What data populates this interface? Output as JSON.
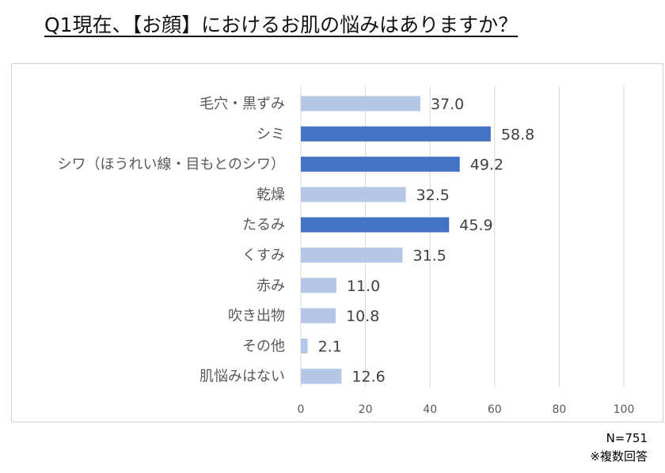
{
  "chart_data": {
    "type": "bar",
    "orientation": "horizontal",
    "title": "Q1現在、【お顔】におけるお肌の悩みはありますか？",
    "categories": [
      "毛穴・黒ずみ",
      "シミ",
      "シワ（ほうれい線・目もとのシワ）",
      "乾燥",
      "たるみ",
      "くすみ",
      "赤み",
      "吹き出物",
      "その他",
      "肌悩みはない"
    ],
    "values": [
      37.0,
      58.8,
      49.2,
      32.5,
      45.9,
      31.5,
      11.0,
      10.8,
      2.1,
      12.6
    ],
    "value_labels": [
      "37.0",
      "58.8",
      "49.2",
      "32.5",
      "45.9",
      "31.5",
      "11.0",
      "10.8",
      "2.1",
      "12.6"
    ],
    "highlighted": [
      false,
      true,
      true,
      false,
      true,
      false,
      false,
      false,
      false,
      false
    ],
    "xlim": [
      0,
      100
    ],
    "xticks": [
      0,
      20,
      40,
      60,
      80,
      100
    ],
    "grid": true,
    "colors": {
      "normal": "#b4c7e7",
      "highlight": "#4472c4",
      "grid": "#d9d9d9"
    }
  },
  "notes": {
    "sample": "N=751",
    "multiple": "※複数回答"
  }
}
